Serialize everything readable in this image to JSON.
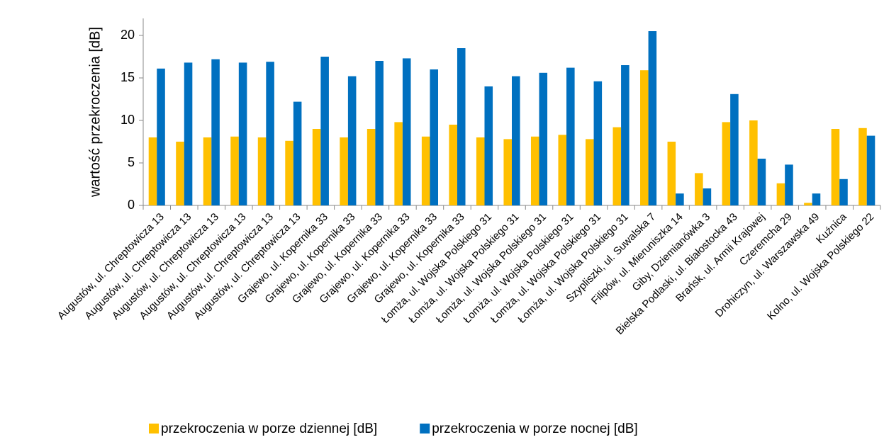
{
  "chart_data": {
    "type": "bar",
    "y_label": "wartość przekroczenia [dB]",
    "categories": [
      "Augustów, ul. Chreptowicza 13",
      "Augustów, ul. Chreptowicza 13",
      "Augustów, ul. Chreptowicza 13",
      "Augustów, ul. Chreptowicza 13",
      "Augustów, ul. Chreptowicza 13",
      "Augustów, ul. Chreptowicza 13",
      "Grajewo, ul. Kopernika 33",
      "Grajewo, ul. Kopernika 33",
      "Grajewo, ul. Kopernika 33",
      "Grajewo, ul. Kopernika 33",
      "Grajewo, ul. Kopernika 33",
      "Grajewo, ul. Kopernika 33",
      "Łomża, ul. Wojska Polskiego 31",
      "Łomża, ul. Wojska Polskiego 31",
      "Łomża, ul. Wojska Polskiego 31",
      "Łomża, ul. Wojska Polskiego 31",
      "Łomża, ul. Wojska Polskiego 31",
      "Łomża, ul. Wojska Polskiego 31",
      "Szypliszki, ul. Suwalska 7",
      "Filipów, ul. Mieruniszka 14",
      "Giby, Dziemianówka 3",
      "Bielska Podlaski, ul. Białostocka 43",
      "Brańsk, ul. Armii Krajowej",
      "Czeremcha 29",
      "Drohiczyn, ul. Warszawska 49",
      "Kuźnica",
      "Kolno, ul. Wojska Polskiego 22"
    ],
    "series": [
      {
        "name": "przekroczenia w porze dziennej [dB]",
        "color": "#ffc000",
        "values": [
          8,
          7.5,
          8,
          8.1,
          8,
          7.6,
          9,
          8,
          9,
          9.8,
          8.1,
          9.5,
          8,
          7.8,
          8.1,
          8.3,
          7.8,
          9.2,
          15.9,
          7.5,
          3.8,
          9.8,
          10,
          2.6,
          0.3,
          9,
          9.1
        ]
      },
      {
        "name": "przekroczenia w porze nocnej [dB]",
        "color": "#0070c0",
        "values": [
          16.1,
          16.8,
          17.2,
          16.8,
          16.9,
          12.2,
          17.5,
          15.2,
          17,
          17.3,
          16,
          18.5,
          14,
          15.2,
          15.6,
          16.2,
          14.6,
          16.5,
          20.5,
          1.4,
          2,
          13.1,
          5.5,
          4.8,
          1.4,
          3.1,
          8.2
        ]
      }
    ],
    "ylim": [
      0,
      22
    ],
    "yticks": [
      0,
      5,
      10,
      15,
      20
    ],
    "grid": false,
    "legend": "bottom"
  }
}
